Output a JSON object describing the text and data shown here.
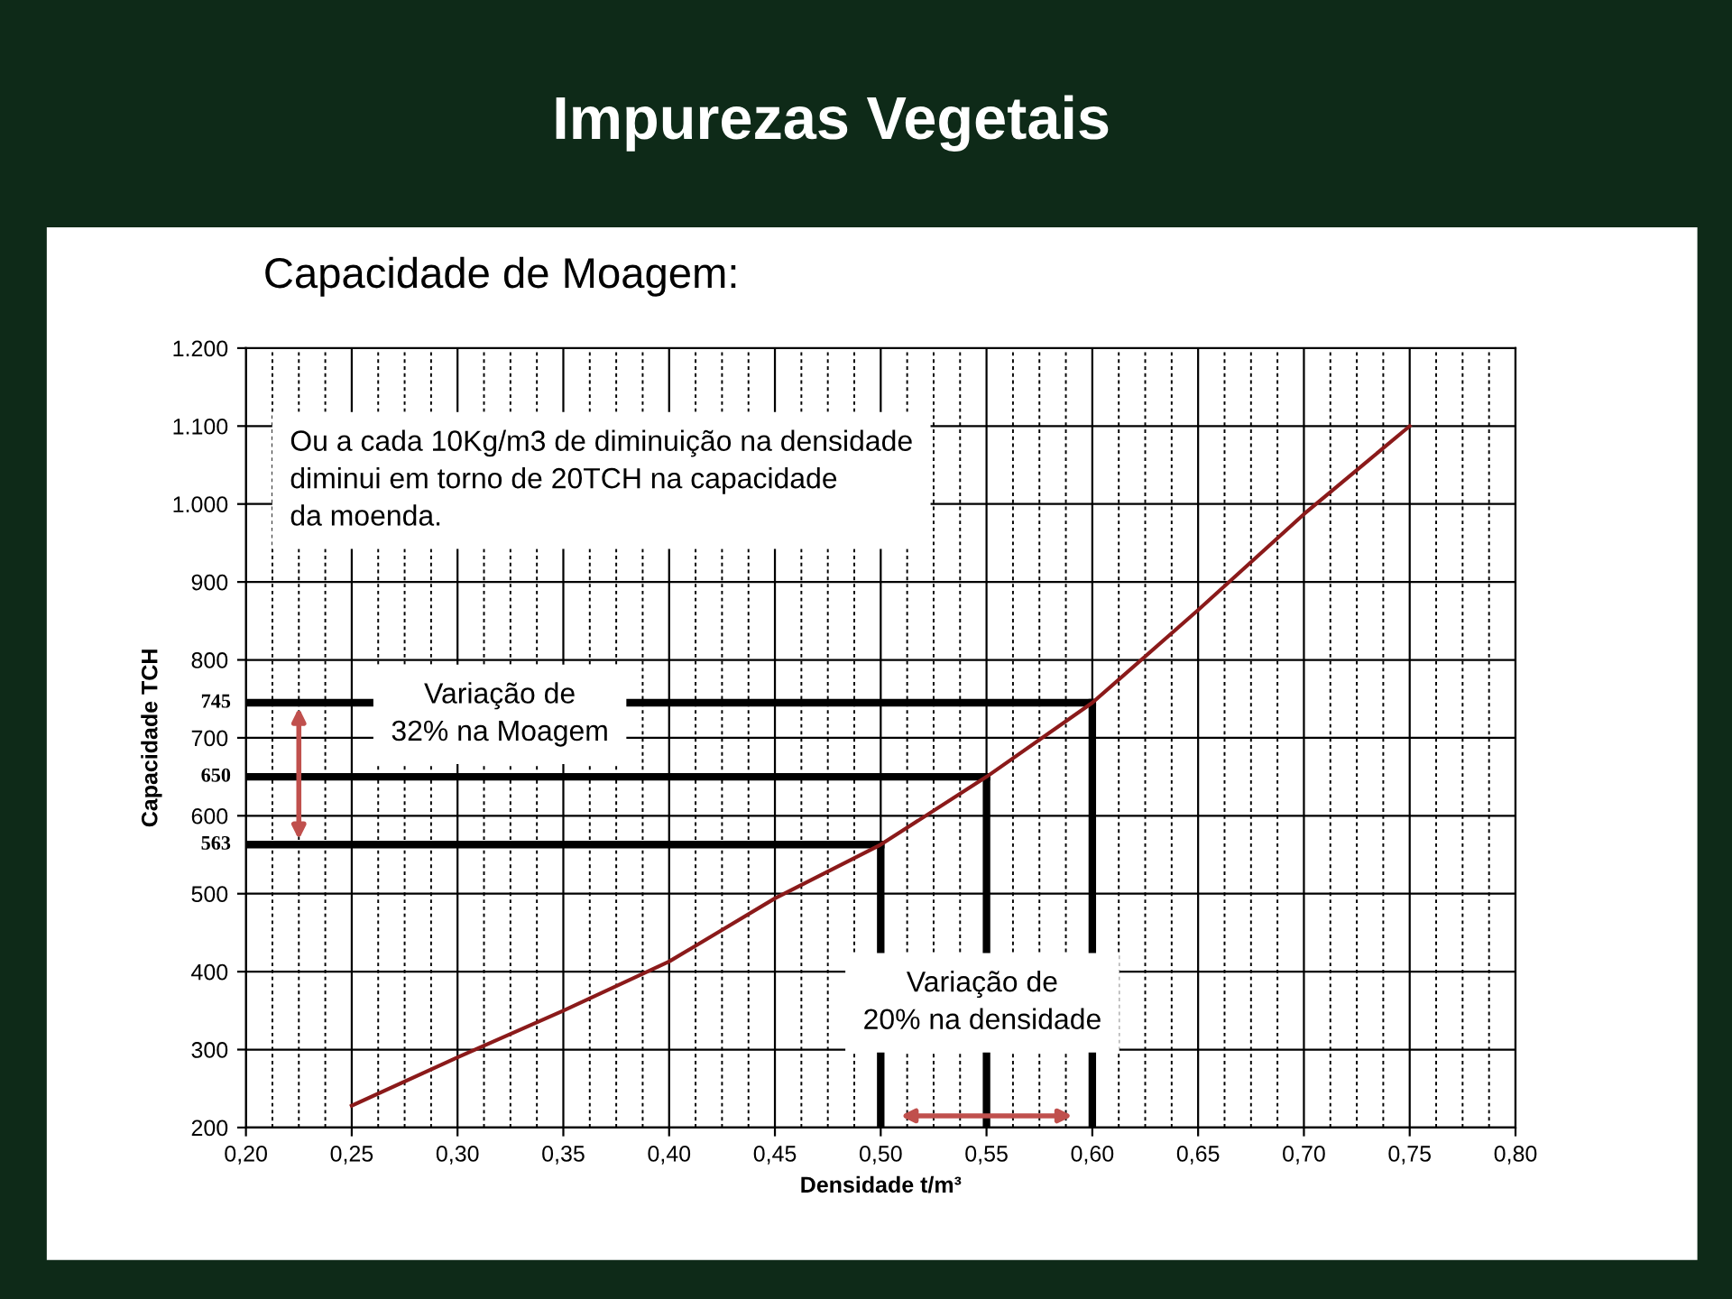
{
  "chart_data": {
    "type": "line",
    "title": "Impurezas Vegetais",
    "subtitle": "Capacidade de Moagem:",
    "xlabel": "Densidade t/m³",
    "ylabel": "Capacidade TCH",
    "series": [
      {
        "color": "#8b1a1a",
        "x": [
          0.25,
          0.3,
          0.35,
          0.4,
          0.45,
          0.5,
          0.55,
          0.6,
          0.65,
          0.7,
          0.75
        ],
        "values": [
          228,
          290,
          350,
          413,
          494,
          563,
          650,
          745,
          864,
          987,
          1100
        ]
      }
    ],
    "ref_lines": [
      {
        "axis": "y",
        "value": 745,
        "label": "745",
        "color": "#000000"
      },
      {
        "axis": "y",
        "value": 650,
        "label": "650",
        "color": "#000000"
      },
      {
        "axis": "y",
        "value": 563,
        "label": "563",
        "color": "#000000"
      },
      {
        "axis": "x",
        "value": 0.6,
        "color": "#000000"
      },
      {
        "axis": "x",
        "value": 0.55,
        "color": "#000000"
      },
      {
        "axis": "x",
        "value": 0.5,
        "color": "#000000"
      }
    ],
    "annotations": [
      "Ou a cada 10Kg/m3 de diminuição na densidade\ndiminui em torno de 20TCH na capacidade\nda moenda.",
      "Variação de\n32% na Moagem",
      "Variação de\n20% na densidade"
    ],
    "xlim": [
      0.2,
      0.8
    ],
    "ylim": [
      200,
      1200
    ],
    "xticks": [
      {
        "value": 0.2,
        "label": "0,20"
      },
      {
        "value": 0.25,
        "label": "0,25"
      },
      {
        "value": 0.3,
        "label": "0,30"
      },
      {
        "value": 0.35,
        "label": "0,35"
      },
      {
        "value": 0.4,
        "label": "0,40"
      },
      {
        "value": 0.45,
        "label": "0,45"
      },
      {
        "value": 0.5,
        "label": "0,50"
      },
      {
        "value": 0.55,
        "label": "0,55"
      },
      {
        "value": 0.6,
        "label": "0,60"
      },
      {
        "value": 0.65,
        "label": "0,65"
      },
      {
        "value": 0.7,
        "label": "0,70"
      },
      {
        "value": 0.75,
        "label": "0,75"
      },
      {
        "value": 0.8,
        "label": "0,80"
      }
    ],
    "yticks": [
      200,
      300,
      400,
      500,
      600,
      700,
      800,
      900,
      {
        "value": 1000,
        "label": "1.000"
      },
      {
        "value": 1100,
        "label": "1.100"
      },
      {
        "value": 1200,
        "label": "1.200"
      }
    ],
    "grid": true,
    "legend": false
  }
}
